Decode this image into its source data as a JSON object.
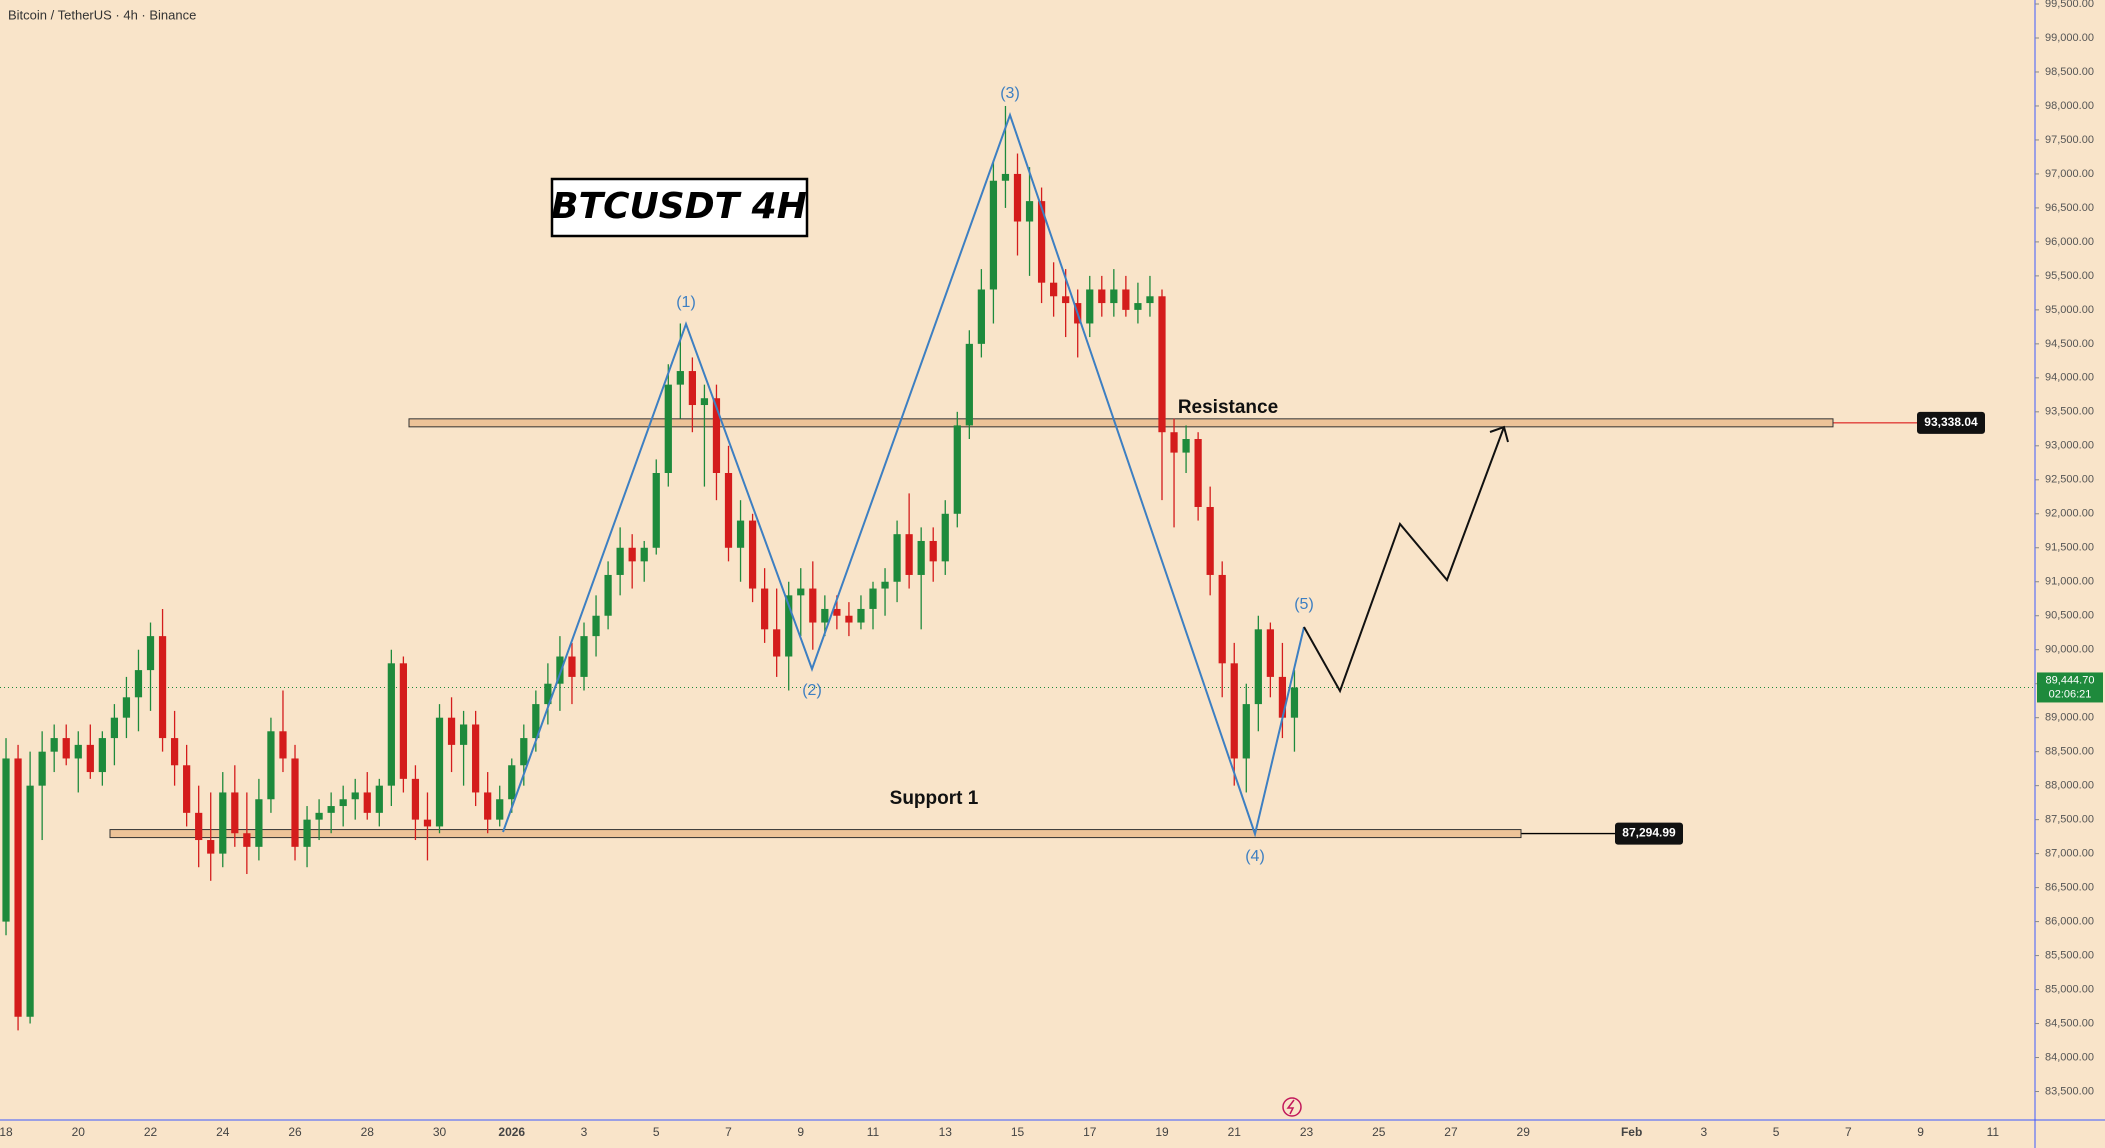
{
  "chart_data": {
    "type": "candlestick",
    "subtitle": "Bitcoin / TetherUS · 4h · Binance",
    "title": "BTCUSDT 4H",
    "up_color": "#1e8a3c",
    "down_color": "#d41c1c",
    "ylim": [
      83081,
      99559
    ],
    "yticks": [
      {
        "value": 83500,
        "label": "83,500.00"
      },
      {
        "value": 84000,
        "label": "84,000.00"
      },
      {
        "value": 84500,
        "label": "84,500.00"
      },
      {
        "value": 85000,
        "label": "85,000.00"
      },
      {
        "value": 85500,
        "label": "85,500.00"
      },
      {
        "value": 86000,
        "label": "86,000.00"
      },
      {
        "value": 86500,
        "label": "86,500.00"
      },
      {
        "value": 87000,
        "label": "87,000.00"
      },
      {
        "value": 87500,
        "label": "87,500.00"
      },
      {
        "value": 88000,
        "label": "88,000.00"
      },
      {
        "value": 88500,
        "label": "88,500.00"
      },
      {
        "value": 89000,
        "label": "89,000.00"
      },
      {
        "value": 89500,
        "label": "89,500.00"
      },
      {
        "value": 90000,
        "label": "90,000.00"
      },
      {
        "value": 90500,
        "label": "90,500.00"
      },
      {
        "value": 91000,
        "label": "91,000.00"
      },
      {
        "value": 91500,
        "label": "91,500.00"
      },
      {
        "value": 92000,
        "label": "92,000.00"
      },
      {
        "value": 92500,
        "label": "92,500.00"
      },
      {
        "value": 93000,
        "label": "93,000.00"
      },
      {
        "value": 93500,
        "label": "93,500.00"
      },
      {
        "value": 94000,
        "label": "94,000.00"
      },
      {
        "value": 94500,
        "label": "94,500.00"
      },
      {
        "value": 95000,
        "label": "95,000.00"
      },
      {
        "value": 95500,
        "label": "95,500.00"
      },
      {
        "value": 96000,
        "label": "96,000.00"
      },
      {
        "value": 96500,
        "label": "96,500.00"
      },
      {
        "value": 97000,
        "label": "97,000.00"
      },
      {
        "value": 97500,
        "label": "97,500.00"
      },
      {
        "value": 98000,
        "label": "98,000.00"
      },
      {
        "value": 98500,
        "label": "98,500.00"
      },
      {
        "value": 99000,
        "label": "99,000.00"
      },
      {
        "value": 99500,
        "label": "99,500.00"
      }
    ],
    "categories": [
      "18",
      null,
      null,
      null,
      null,
      null,
      "20",
      null,
      null,
      null,
      null,
      null,
      "22",
      null,
      null,
      null,
      null,
      null,
      "24",
      null,
      null,
      null,
      null,
      null,
      "26",
      null,
      null,
      null,
      null,
      null,
      "28",
      null,
      null,
      null,
      null,
      null,
      "30",
      null,
      null,
      null,
      null,
      null,
      "2026",
      null,
      null,
      null,
      null,
      null,
      "3",
      null,
      null,
      null,
      null,
      null,
      "5",
      null,
      null,
      null,
      null,
      null,
      "7",
      null,
      null,
      null,
      null,
      null,
      "9",
      null,
      null,
      null,
      null,
      null,
      "11",
      null,
      null,
      null,
      null,
      null,
      "13",
      null,
      null,
      null,
      null,
      null,
      "15",
      null,
      null,
      null,
      null,
      null,
      "17",
      null,
      null,
      null,
      null,
      null,
      "19",
      null,
      null,
      null,
      null,
      null,
      "21",
      null,
      null,
      null,
      null,
      null,
      "23",
      null,
      null,
      null,
      null,
      null,
      "25",
      null,
      null,
      null,
      null,
      null,
      "27",
      null,
      null,
      null,
      null,
      null,
      "29",
      null,
      null,
      null,
      null,
      null,
      null,
      null,
      null,
      "Feb",
      null,
      null,
      null,
      null,
      null,
      "3",
      null,
      null,
      null,
      null,
      null,
      "5",
      null,
      null,
      null,
      null,
      null,
      "7",
      null,
      null,
      null,
      null,
      null,
      "9",
      null,
      null,
      null,
      null,
      null,
      "11",
      null,
      null,
      null
    ],
    "ohlc": [
      [
        86000,
        88700,
        85800,
        88400
      ],
      [
        88400,
        88600,
        84400,
        84600
      ],
      [
        84600,
        88500,
        84500,
        88000
      ],
      [
        88000,
        88800,
        87200,
        88500
      ],
      [
        88500,
        88900,
        88200,
        88700
      ],
      [
        88700,
        88900,
        88300,
        88400
      ],
      [
        88400,
        88800,
        87900,
        88600
      ],
      [
        88600,
        88900,
        88100,
        88200
      ],
      [
        88200,
        88800,
        88000,
        88700
      ],
      [
        88700,
        89200,
        88300,
        89000
      ],
      [
        89000,
        89600,
        88700,
        89300
      ],
      [
        89300,
        90000,
        88800,
        89700
      ],
      [
        89700,
        90400,
        89100,
        90200
      ],
      [
        90200,
        90600,
        88500,
        88700
      ],
      [
        88700,
        89100,
        88000,
        88300
      ],
      [
        88300,
        88600,
        87400,
        87600
      ],
      [
        87600,
        88000,
        86800,
        87200
      ],
      [
        87200,
        87900,
        86600,
        87000
      ],
      [
        87000,
        88200,
        86800,
        87900
      ],
      [
        87900,
        88300,
        87100,
        87300
      ],
      [
        87300,
        87900,
        86700,
        87100
      ],
      [
        87100,
        88100,
        86900,
        87800
      ],
      [
        87800,
        89000,
        87600,
        88800
      ],
      [
        88800,
        89400,
        88200,
        88400
      ],
      [
        88400,
        88600,
        86900,
        87100
      ],
      [
        87100,
        87700,
        86800,
        87500
      ],
      [
        87500,
        87800,
        87200,
        87600
      ],
      [
        87600,
        87900,
        87300,
        87700
      ],
      [
        87700,
        88000,
        87400,
        87800
      ],
      [
        87800,
        88100,
        87500,
        87900
      ],
      [
        87900,
        88200,
        87500,
        87600
      ],
      [
        87600,
        88100,
        87400,
        88000
      ],
      [
        88000,
        90000,
        87700,
        89800
      ],
      [
        89800,
        89900,
        87900,
        88100
      ],
      [
        88100,
        88300,
        87200,
        87500
      ],
      [
        87500,
        87900,
        86900,
        87400
      ],
      [
        87400,
        89200,
        87300,
        89000
      ],
      [
        89000,
        89300,
        88200,
        88600
      ],
      [
        88600,
        89100,
        88000,
        88900
      ],
      [
        88900,
        89100,
        87700,
        87900
      ],
      [
        87900,
        88200,
        87300,
        87500
      ],
      [
        87500,
        88000,
        87400,
        87800
      ],
      [
        87800,
        88400,
        87600,
        88300
      ],
      [
        88300,
        88900,
        88000,
        88700
      ],
      [
        88700,
        89400,
        88500,
        89200
      ],
      [
        89200,
        89800,
        88900,
        89500
      ],
      [
        89500,
        90200,
        89100,
        89900
      ],
      [
        89900,
        90100,
        89200,
        89600
      ],
      [
        89600,
        90400,
        89400,
        90200
      ],
      [
        90200,
        90800,
        89900,
        90500
      ],
      [
        90500,
        91300,
        90300,
        91100
      ],
      [
        91100,
        91800,
        90800,
        91500
      ],
      [
        91500,
        91700,
        90900,
        91300
      ],
      [
        91300,
        91600,
        91000,
        91500
      ],
      [
        91500,
        92800,
        91400,
        92600
      ],
      [
        92600,
        94200,
        92400,
        93900
      ],
      [
        93900,
        94800,
        93400,
        94100
      ],
      [
        94100,
        94300,
        93200,
        93600
      ],
      [
        93600,
        93900,
        92400,
        93700
      ],
      [
        93700,
        93900,
        92200,
        92600
      ],
      [
        92600,
        93000,
        91300,
        91500
      ],
      [
        91500,
        92200,
        91000,
        91900
      ],
      [
        91900,
        92000,
        90700,
        90900
      ],
      [
        90900,
        91200,
        90100,
        90300
      ],
      [
        90300,
        90900,
        89600,
        89900
      ],
      [
        89900,
        91000,
        89400,
        90800
      ],
      [
        90800,
        91200,
        90200,
        90900
      ],
      [
        90900,
        91300,
        90000,
        90400
      ],
      [
        90400,
        90800,
        90200,
        90600
      ],
      [
        90600,
        90800,
        90300,
        90500
      ],
      [
        90500,
        90700,
        90200,
        90400
      ],
      [
        90400,
        90800,
        90300,
        90600
      ],
      [
        90600,
        91000,
        90300,
        90900
      ],
      [
        90900,
        91200,
        90500,
        91000
      ],
      [
        91000,
        91900,
        90700,
        91700
      ],
      [
        91700,
        92300,
        90900,
        91100
      ],
      [
        91100,
        91800,
        90300,
        91600
      ],
      [
        91600,
        91800,
        91000,
        91300
      ],
      [
        91300,
        92200,
        91100,
        92000
      ],
      [
        92000,
        93500,
        91800,
        93300
      ],
      [
        93300,
        94700,
        93100,
        94500
      ],
      [
        94500,
        95600,
        94300,
        95300
      ],
      [
        95300,
        97200,
        94800,
        96900
      ],
      [
        96900,
        98000,
        96500,
        97000
      ],
      [
        97000,
        97300,
        95800,
        96300
      ],
      [
        96300,
        97100,
        95500,
        96600
      ],
      [
        96600,
        96800,
        95100,
        95400
      ],
      [
        95400,
        95700,
        94900,
        95200
      ],
      [
        95200,
        95600,
        94600,
        95100
      ],
      [
        95100,
        95300,
        94300,
        94800
      ],
      [
        94800,
        95500,
        94600,
        95300
      ],
      [
        95300,
        95500,
        94900,
        95100
      ],
      [
        95100,
        95600,
        94900,
        95300
      ],
      [
        95300,
        95500,
        94900,
        95000
      ],
      [
        95000,
        95400,
        94800,
        95100
      ],
      [
        95100,
        95500,
        94900,
        95200
      ],
      [
        95200,
        95300,
        92200,
        93200
      ],
      [
        93200,
        93400,
        91800,
        92900
      ],
      [
        92900,
        93300,
        92600,
        93100
      ],
      [
        93100,
        93200,
        91900,
        92100
      ],
      [
        92100,
        92400,
        90800,
        91100
      ],
      [
        91100,
        91300,
        89300,
        89800
      ],
      [
        89800,
        90100,
        88000,
        88400
      ],
      [
        88400,
        89500,
        87900,
        89200
      ],
      [
        89200,
        90500,
        88800,
        90300
      ],
      [
        90300,
        90400,
        89300,
        89600
      ],
      [
        89600,
        90100,
        88700,
        89000
      ],
      [
        89000,
        89700,
        88500,
        89444.7
      ],
      null,
      null,
      null,
      null,
      null,
      null,
      null,
      null,
      null,
      null,
      null,
      null,
      null,
      null,
      null,
      null,
      null,
      null,
      null,
      null,
      null,
      null,
      null,
      null,
      null,
      null,
      null,
      null,
      null,
      null,
      null,
      null,
      null,
      null,
      null,
      null,
      null,
      null,
      null,
      null,
      null,
      null,
      null,
      null,
      null,
      null,
      null,
      null,
      null,
      null,
      null,
      null,
      null,
      null,
      null,
      null,
      null,
      null,
      null,
      null,
      null
    ],
    "levels": [
      {
        "name": "Resistance",
        "value": 93338.04,
        "label": "93,338.04",
        "color": "#e0403a"
      },
      {
        "name": "Support 1",
        "value": 87294.99,
        "label": "87,294.99",
        "color": "#000000"
      }
    ],
    "last_price": {
      "value": 89444.7,
      "label": "89,444.70",
      "countdown": "02:06:21"
    },
    "wave_labels": [
      "(1)",
      "(2)",
      "(3)",
      "(4)",
      "(5)"
    ]
  }
}
